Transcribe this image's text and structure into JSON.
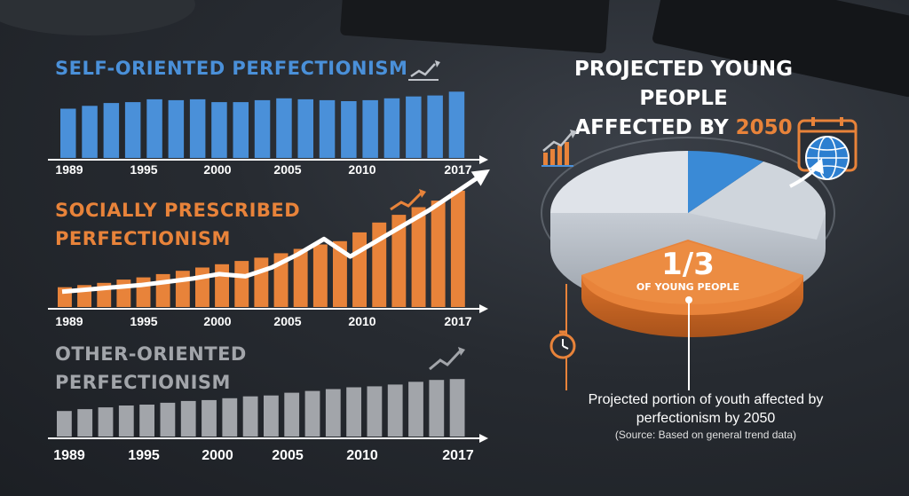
{
  "colors": {
    "self": "#4a90d9",
    "social": "#e8833a",
    "other": "#a2a5aa",
    "pie_main": "#d8dde4",
    "pie_blue": "#3a8ad6",
    "pie_orange": "#e8833a"
  },
  "icons": [
    "trend-up-icon",
    "calendar-globe-icon",
    "clock-icon"
  ],
  "chart_data": [
    {
      "type": "bar",
      "title": "SELF-ORIENTED PERFECTIONISM",
      "x_ticks": [
        "1989",
        "1995",
        "2000",
        "2005",
        "2010",
        "2017"
      ],
      "values": [
        52,
        55,
        58,
        59,
        62,
        61,
        62,
        59,
        59,
        61,
        63,
        62,
        61,
        60,
        61,
        63,
        65,
        66,
        70
      ],
      "ylim": [
        0,
        75
      ],
      "grid": false,
      "legend": "none"
    },
    {
      "type": "bar",
      "title": "SOCIALLY PRESCRIBED PERFECTIONISM",
      "x_ticks": [
        "1989",
        "1995",
        "2000",
        "2005",
        "2010",
        "2017"
      ],
      "values": [
        18,
        20,
        22,
        25,
        27,
        30,
        33,
        36,
        39,
        42,
        45,
        49,
        53,
        57,
        60,
        68,
        77,
        84,
        91,
        97,
        106
      ],
      "ylim": [
        0,
        110
      ],
      "trend_line": [
        14,
        16,
        18,
        20,
        23,
        26,
        30,
        28,
        36,
        48,
        62,
        46,
        60,
        74,
        88,
        104,
        120
      ],
      "grid": false,
      "legend": "none"
    },
    {
      "type": "bar",
      "title": "OTHER-ORIENTED PERFECTIONISM",
      "x_ticks": [
        "1989",
        "1995",
        "2000",
        "2005",
        "2010",
        "2017"
      ],
      "values": [
        28,
        30,
        32,
        34,
        35,
        37,
        39,
        40,
        42,
        44,
        45,
        48,
        50,
        52,
        54,
        55,
        57,
        60,
        62,
        63
      ],
      "ylim": [
        0,
        70
      ],
      "grid": false,
      "legend": "none"
    },
    {
      "type": "pie",
      "title_prefix": "PROJECTED YOUNG PEOPLE",
      "title_suffix": "AFFECTED BY ",
      "title_year": "2050",
      "slices": [
        {
          "label": "1/3",
          "sublabel": "OF YOUNG PEOPLE",
          "value": 33.3
        },
        {
          "label": "",
          "value": 8
        },
        {
          "label": "",
          "value": 58.7
        }
      ],
      "caption": "Projected portion of youth affected by perfectionism by 2050",
      "source": "(Source: Based on general trend data)"
    }
  ]
}
